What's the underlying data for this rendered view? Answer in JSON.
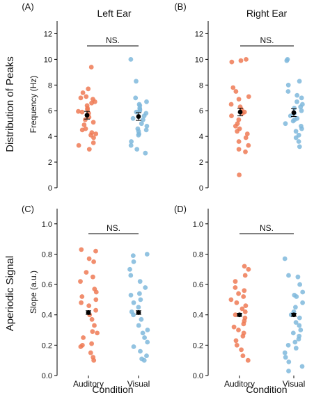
{
  "figure": {
    "col_titles": [
      "Left Ear",
      "Right Ear"
    ],
    "row_titles": [
      "Distribution of Peaks",
      "Aperiodic Signal"
    ],
    "xlabel": "Condition",
    "colors": {
      "Auditory": "#ef7a55",
      "Visual": "#7fb8dc",
      "mean": "#000000",
      "axis": "#000000"
    }
  },
  "chart_data": [
    {
      "type": "scatter",
      "panel_label": "(A)",
      "ylabel": "Frequency (Hz)",
      "ylim": [
        0,
        13
      ],
      "yticks": [
        0,
        2,
        4,
        6,
        8,
        10,
        12
      ],
      "categories": [
        "Auditory",
        "Visual"
      ],
      "significance": "NS.",
      "series": [
        {
          "name": "Auditory",
          "mean": 5.65,
          "sem": 0.3,
          "values": [
            9.4,
            7.7,
            7.1,
            7.4,
            6.9,
            6.6,
            6.4,
            6.2,
            6.1,
            5.95,
            5.8,
            5.5,
            5.3,
            5.1,
            4.9,
            4.6,
            4.5,
            4.2,
            4.1,
            3.9,
            3.5,
            3.3,
            3.0,
            6.7,
            5.9,
            4.3,
            7.0
          ]
        },
        {
          "name": "Visual",
          "mean": 5.55,
          "sem": 0.3,
          "values": [
            10.0,
            8.3,
            7.0,
            6.7,
            6.5,
            6.4,
            6.2,
            6.1,
            6.0,
            5.9,
            5.8,
            5.6,
            5.4,
            5.3,
            5.0,
            4.8,
            4.6,
            4.5,
            4.4,
            4.2,
            4.1,
            3.6,
            3.3,
            3.0,
            2.7
          ]
        }
      ]
    },
    {
      "type": "scatter",
      "panel_label": "(B)",
      "ylabel": "",
      "ylim": [
        0,
        13
      ],
      "yticks": [
        0,
        2,
        4,
        6,
        8,
        10,
        12
      ],
      "categories": [
        "Auditory",
        "Visual"
      ],
      "significance": "NS.",
      "series": [
        {
          "name": "Auditory",
          "mean": 5.9,
          "sem": 0.3,
          "values": [
            10.0,
            9.9,
            9.8,
            7.8,
            7.5,
            7.1,
            6.9,
            6.5,
            6.3,
            6.1,
            5.9,
            5.8,
            5.6,
            5.3,
            5.0,
            4.8,
            4.6,
            4.4,
            4.2,
            3.9,
            3.6,
            3.3,
            3.0,
            2.8,
            1.0
          ]
        },
        {
          "name": "Visual",
          "mean": 5.85,
          "sem": 0.3,
          "values": [
            10.0,
            9.9,
            8.3,
            8.0,
            7.5,
            7.2,
            7.0,
            6.7,
            6.5,
            6.3,
            6.2,
            6.0,
            5.8,
            5.6,
            5.4,
            5.3,
            5.2,
            5.0,
            4.8,
            4.6,
            4.4,
            4.1,
            3.9,
            3.6,
            3.2
          ]
        }
      ]
    },
    {
      "type": "scatter",
      "panel_label": "(C)",
      "ylabel": "Slope (a.u.)",
      "ylim": [
        0,
        1.1
      ],
      "yticks": [
        0.0,
        0.2,
        0.4,
        0.6,
        0.8,
        1.0
      ],
      "categories": [
        "Auditory",
        "Visual"
      ],
      "significance": "NS.",
      "series": [
        {
          "name": "Auditory",
          "mean": 0.415,
          "sem": 0.012,
          "values": [
            0.83,
            0.82,
            0.77,
            0.75,
            0.68,
            0.65,
            0.62,
            0.57,
            0.55,
            0.52,
            0.5,
            0.48,
            0.46,
            0.43,
            0.4,
            0.37,
            0.33,
            0.29,
            0.28,
            0.25,
            0.21,
            0.2,
            0.19,
            0.15,
            0.12,
            0.1
          ]
        },
        {
          "name": "Visual",
          "mean": 0.415,
          "sem": 0.012,
          "values": [
            0.8,
            0.79,
            0.75,
            0.7,
            0.66,
            0.62,
            0.58,
            0.54,
            0.53,
            0.5,
            0.48,
            0.45,
            0.42,
            0.4,
            0.37,
            0.33,
            0.3,
            0.28,
            0.25,
            0.22,
            0.19,
            0.16,
            0.13,
            0.11,
            0.1
          ]
        }
      ]
    },
    {
      "type": "scatter",
      "panel_label": "(D)",
      "ylabel": "",
      "ylim": [
        0,
        1.1
      ],
      "yticks": [
        0.0,
        0.2,
        0.4,
        0.6,
        0.8,
        1.0
      ],
      "categories": [
        "Auditory",
        "Visual"
      ],
      "significance": "NS.",
      "series": [
        {
          "name": "Auditory",
          "mean": 0.4,
          "sem": 0.01,
          "values": [
            0.72,
            0.7,
            0.66,
            0.62,
            0.58,
            0.56,
            0.54,
            0.52,
            0.5,
            0.48,
            0.46,
            0.44,
            0.42,
            0.4,
            0.38,
            0.36,
            0.34,
            0.32,
            0.3,
            0.28,
            0.26,
            0.23,
            0.2,
            0.17,
            0.13,
            0.1
          ]
        },
        {
          "name": "Visual",
          "mean": 0.4,
          "sem": 0.01,
          "values": [
            0.77,
            0.66,
            0.65,
            0.6,
            0.55,
            0.53,
            0.52,
            0.48,
            0.45,
            0.42,
            0.4,
            0.38,
            0.35,
            0.33,
            0.3,
            0.28,
            0.26,
            0.24,
            0.22,
            0.2,
            0.18,
            0.15,
            0.12,
            0.09,
            0.06,
            0.03
          ]
        }
      ]
    }
  ]
}
